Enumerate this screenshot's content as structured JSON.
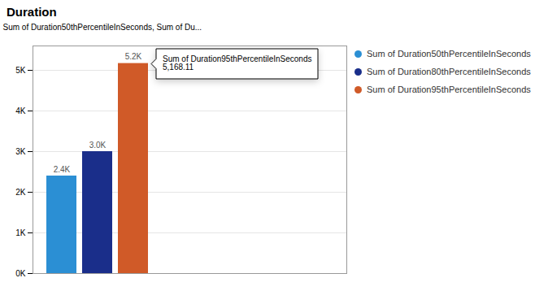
{
  "chart_data": {
    "type": "bar",
    "title": "Duration",
    "categories": [
      null
    ],
    "series": [
      {
        "name": "Sum of Duration50thPercentileInSeconds",
        "color": "#2B8FD4",
        "values": [
          2400
        ],
        "value_labels": [
          "2.4K"
        ]
      },
      {
        "name": "Sum of Duration80thPercentileInSeconds",
        "color": "#1A2E8A",
        "values": [
          3000
        ],
        "value_labels": [
          "3.0K"
        ]
      },
      {
        "name": "Sum of Duration95thPercentileInSeconds",
        "color": "#D05A28",
        "values": [
          5168.11
        ],
        "value_labels": [
          "5.2K"
        ]
      }
    ],
    "ylabel": "Sum of Duration50thPercentileInSeconds, Sum of Du...",
    "ylim": [
      0,
      5600
    ],
    "yticks": [
      {
        "value": 0,
        "label": "0K"
      },
      {
        "value": 1000,
        "label": "1K"
      },
      {
        "value": 2000,
        "label": "2K"
      },
      {
        "value": 3000,
        "label": "3K"
      },
      {
        "value": 4000,
        "label": "4K"
      },
      {
        "value": 5000,
        "label": "5K"
      }
    ],
    "grid": true,
    "legend": "right",
    "data_labels": true,
    "tick_labels": "y",
    "annotations": [
      {
        "text": "Sum of Duration95thPercentileInSeconds",
        "value": 5168.11,
        "label": "5,168.11"
      }
    ]
  }
}
